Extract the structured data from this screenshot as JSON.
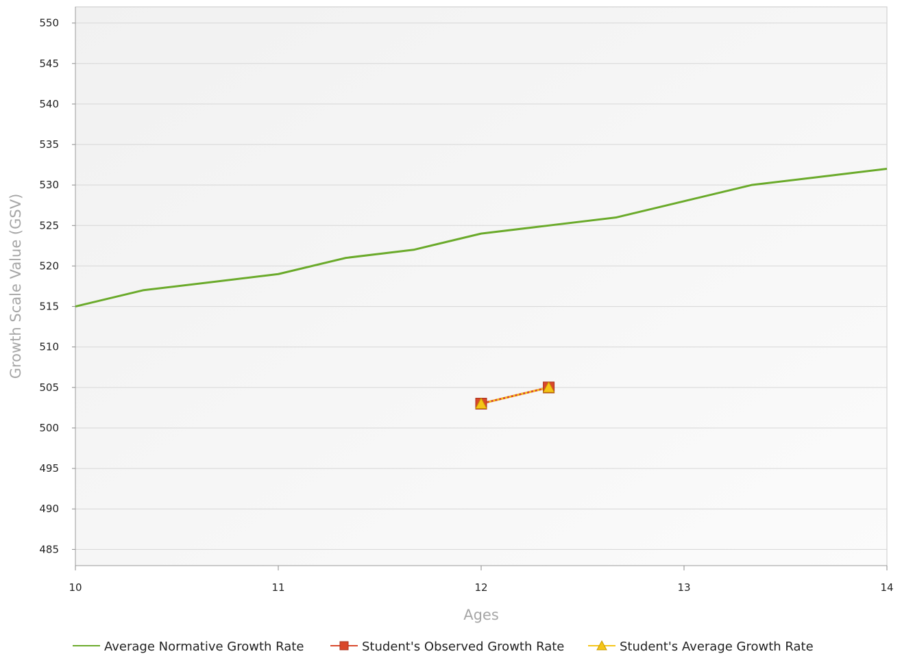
{
  "chart_data": {
    "type": "line",
    "xlabel": "Ages",
    "ylabel": "Growth Scale Value (GSV)",
    "xlim": [
      10,
      14
    ],
    "ylim": [
      483,
      552
    ],
    "xticks": [
      10,
      11,
      12,
      13,
      14
    ],
    "yticks": [
      485,
      490,
      495,
      500,
      505,
      510,
      515,
      520,
      525,
      530,
      535,
      540,
      545,
      550
    ],
    "grid": true,
    "legend_position": "bottom",
    "series": [
      {
        "name": "Average Normative Growth Rate",
        "color": "#6aaa2a",
        "marker": "none",
        "x": [
          10,
          10.333,
          10.667,
          11,
          11.333,
          11.667,
          12,
          12.333,
          12.667,
          13,
          13.333,
          13.667,
          14
        ],
        "y": [
          515,
          517,
          518,
          519,
          521,
          522,
          524,
          525,
          526,
          528,
          530,
          531,
          532
        ]
      },
      {
        "name": "Student's Observed Growth Rate",
        "color": "#d9482b",
        "marker": "square",
        "x": [
          12,
          12.333
        ],
        "y": [
          503,
          505
        ]
      },
      {
        "name": "Student's Average Growth Rate",
        "color": "#f5c518",
        "marker": "triangle",
        "x": [
          12,
          12.333
        ],
        "y": [
          503,
          505
        ]
      }
    ]
  }
}
